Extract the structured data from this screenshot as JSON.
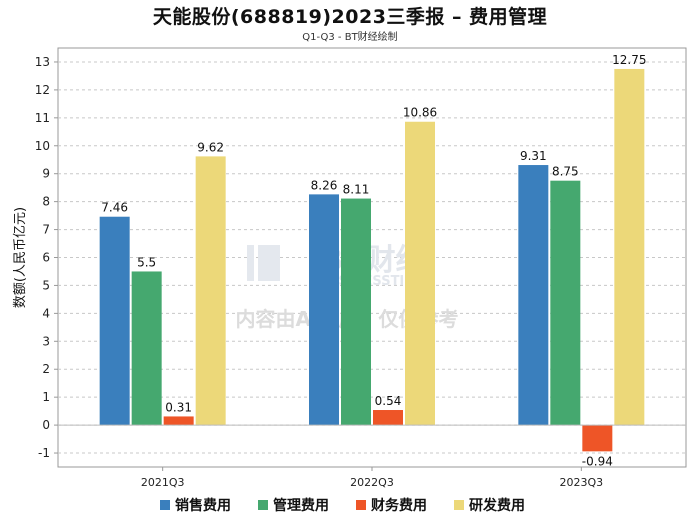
{
  "chart_data": {
    "type": "bar",
    "title": "天能股份(688819)2023三季报 – 费用管理",
    "subtitle": "Q1-Q3 - BT财经绘制",
    "ylabel": "数额(人民币亿元)",
    "xlabel": "",
    "ylim": [
      -1.5,
      13.5
    ],
    "yticks": [
      -1,
      0,
      1,
      2,
      3,
      4,
      5,
      6,
      7,
      8,
      9,
      10,
      11,
      12,
      13
    ],
    "categories": [
      "2021Q3",
      "2022Q3",
      "2023Q3"
    ],
    "series": [
      {
        "name": "销售费用",
        "color": "#3a7fbd",
        "values": [
          7.46,
          8.26,
          9.31
        ],
        "labels": [
          "7.46",
          "8.26",
          "9.31"
        ]
      },
      {
        "name": "管理费用",
        "color": "#45a86f",
        "values": [
          5.5,
          8.11,
          8.75
        ],
        "labels": [
          "5.5",
          "8.11",
          "8.75"
        ]
      },
      {
        "name": "财务费用",
        "color": "#ee5527",
        "values": [
          0.31,
          0.54,
          -0.94
        ],
        "labels": [
          "0.31",
          "0.54",
          "-0.94"
        ]
      },
      {
        "name": "研发费用",
        "color": "#ecd879",
        "values": [
          9.62,
          10.86,
          12.75
        ],
        "labels": [
          "9.62",
          "10.86",
          "12.75"
        ]
      }
    ],
    "legend_position": "bottom",
    "grid": true,
    "watermark": {
      "brand": "BT财经",
      "brand_en": "BUSINESSTIMES",
      "notice": "内容由AI生成，仅供参考"
    }
  }
}
